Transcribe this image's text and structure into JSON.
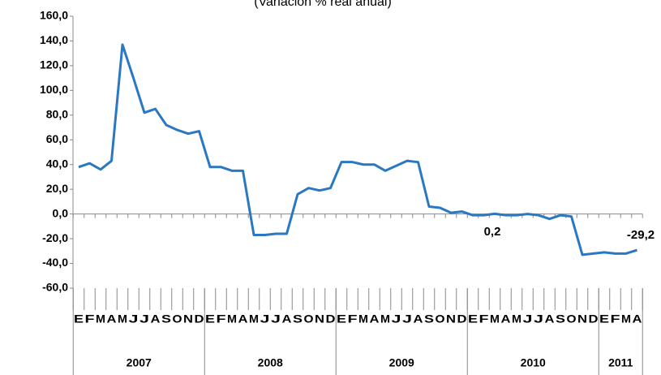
{
  "chart_data": {
    "type": "line",
    "title": "(Variación % real anual)",
    "categories": [
      "E",
      "F",
      "M",
      "A",
      "M",
      "J",
      "J",
      "A",
      "S",
      "O",
      "N",
      "D",
      "E",
      "F",
      "M",
      "A",
      "M",
      "J",
      "J",
      "A",
      "S",
      "O",
      "N",
      "D",
      "E",
      "F",
      "M",
      "A",
      "M",
      "J",
      "J",
      "A",
      "S",
      "O",
      "N",
      "D",
      "E",
      "F",
      "M",
      "A",
      "M",
      "J",
      "J",
      "A",
      "S",
      "O",
      "N",
      "D",
      "E",
      "F",
      "M",
      "A"
    ],
    "years": [
      "2007",
      "2008",
      "2009",
      "2010",
      "2011"
    ],
    "series": [
      {
        "name": "Variación",
        "color": "#2a78c2",
        "values": [
          38,
          41,
          36,
          43,
          137,
          110,
          82,
          85,
          72,
          68,
          65,
          67,
          38,
          38,
          35,
          35,
          -17,
          -17,
          -16,
          -16,
          16,
          21,
          19,
          21,
          42,
          42,
          40,
          40,
          35,
          39,
          43,
          42,
          6,
          5,
          1,
          2,
          -1,
          -1,
          0.2,
          -1,
          -1,
          0,
          -1,
          -4,
          -1,
          -2,
          -33,
          -32,
          -31,
          -32,
          -32,
          -29.2
        ]
      }
    ],
    "annotations": [
      "0,2",
      "-29,2"
    ],
    "ylim": [
      -60,
      160
    ],
    "yticks": [
      {
        "value": -60,
        "label": "-60,0"
      },
      {
        "value": -40,
        "label": "-40,0"
      },
      {
        "value": -20,
        "label": "-20,0"
      },
      {
        "value": 0,
        "label": "0,0"
      },
      {
        "value": 20,
        "label": "20,0"
      },
      {
        "value": 40,
        "label": "40,0"
      },
      {
        "value": 60,
        "label": "60,0"
      },
      {
        "value": 80,
        "label": "80,0"
      },
      {
        "value": 100,
        "label": "100,0"
      },
      {
        "value": 120,
        "label": "120,0"
      },
      {
        "value": 140,
        "label": "140,0"
      },
      {
        "value": 160,
        "label": "160,0"
      }
    ]
  }
}
